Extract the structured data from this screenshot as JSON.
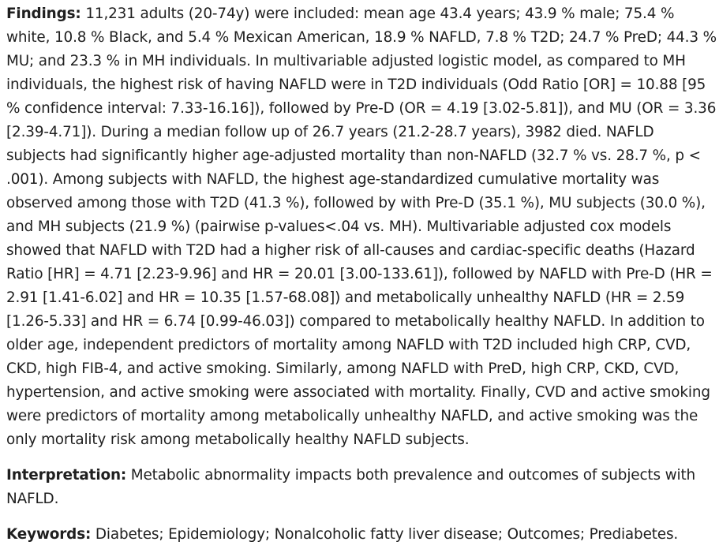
{
  "findings": {
    "label": "Findings:",
    "text": " 11,231 adults (20-74y) were included: mean age 43.4 years; 43.9 % male; 75.4 % white, 10.8 % Black, and 5.4 % Mexican American, 18.9 % NAFLD, 7.8 % T2D; 24.7 % PreD; 44.3 % MU; and 23.3 % in MH individuals. In multivariable adjusted logistic model, as compared to MH individuals, the highest risk of having NAFLD were in T2D individuals (Odd Ratio [OR] = 10.88 [95 % confidence interval: 7.33-16.16]), followed by Pre-D (OR = 4.19 [3.02-5.81]), and MU (OR = 3.36 [2.39-4.71]). During a median follow up of 26.7 years (21.2-28.7 years), 3982 died. NAFLD subjects had significantly higher age-adjusted mortality than non-NAFLD (32.7 % vs. 28.7 %, p < .001). Among subjects with NAFLD, the highest age-standardized cumulative mortality was observed among those with T2D (41.3 %), followed by with Pre-D (35.1 %), MU subjects (30.0 %), and MH subjects (21.9 %) (pairwise p-values<.04 vs. MH). Multivariable adjusted cox models showed that NAFLD with T2D had a higher risk of all-causes and cardiac-specific deaths (Hazard Ratio [HR] = 4.71 [2.23-9.96] and HR = 20.01 [3.00-133.61]), followed by NAFLD with Pre-D (HR = 2.91 [1.41-6.02] and HR = 10.35 [1.57-68.08]) and metabolically unhealthy NAFLD (HR = 2.59 [1.26-5.33] and HR = 6.74 [0.99-46.03]) compared to metabolically healthy NAFLD. In addition to older age, independent predictors of mortality among NAFLD with T2D included high CRP, CVD, CKD, high FIB-4, and active smoking. Similarly, among NAFLD with PreD, high CRP, CKD, CVD, hypertension, and active smoking were associated with mortality. Finally, CVD and active smoking were predictors of mortality among metabolically unhealthy NAFLD, and active smoking was the only mortality risk among metabolically healthy NAFLD subjects."
  },
  "interpretation": {
    "label": "Interpretation:",
    "text": " Metabolic abnormality impacts both prevalence and outcomes of subjects with NAFLD."
  },
  "keywords": {
    "label": "Keywords:",
    "text": " Diabetes; Epidemiology; Nonalcoholic fatty liver disease; Outcomes; Prediabetes."
  }
}
